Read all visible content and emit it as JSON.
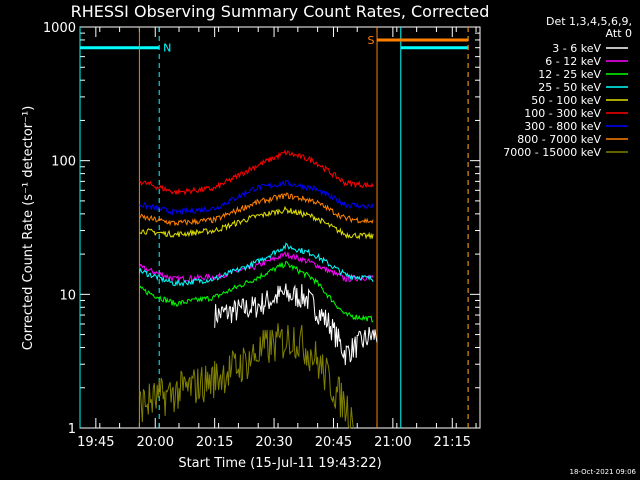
{
  "chart_data": {
    "type": "line",
    "title": "RHESSI Observing Summary Count Rates, Corrected",
    "xlabel": "Start Time (15-Jul-11 19:43:22)",
    "ylabel": "Corrected Count Rate (s⁻¹ detector⁻¹)",
    "y_scale": "log",
    "ylim": [
      1,
      1000
    ],
    "xlim": [
      "19:41",
      "21:22"
    ],
    "y_ticks": [
      "1",
      "10",
      "100",
      "1000"
    ],
    "x_ticks": [
      "19:45",
      "20:00",
      "20:15",
      "20:30",
      "20:45",
      "21:00",
      "21:15"
    ],
    "detector_info": [
      "Det 1,3,4,5,6,9,",
      "Att 0"
    ],
    "footer_date": "18-Oct-2021 09:06",
    "data_start": "19:56",
    "data_end": "20:56",
    "series": [
      {
        "name": "3 - 6 keV",
        "color": "#ffffff",
        "points": [
          [
            "19:56",
            null
          ],
          [
            "20:15",
            7
          ],
          [
            "20:25",
            8
          ],
          [
            "20:32",
            10
          ],
          [
            "20:38",
            9.5
          ],
          [
            "20:44",
            6
          ],
          [
            "20:48",
            3.6
          ],
          [
            "20:54",
            4.8
          ],
          [
            "20:56",
            5
          ]
        ]
      },
      {
        "name": "6 - 12 keV",
        "color": "#ff00ff",
        "points": [
          [
            "19:56",
            16
          ],
          [
            "20:05",
            13
          ],
          [
            "20:15",
            13.5
          ],
          [
            "20:25",
            16
          ],
          [
            "20:33",
            20
          ],
          [
            "20:40",
            17
          ],
          [
            "20:48",
            13
          ],
          [
            "20:55",
            13.5
          ]
        ]
      },
      {
        "name": "12 - 25 keV",
        "color": "#00ff00",
        "points": [
          [
            "19:56",
            11
          ],
          [
            "20:05",
            8.5
          ],
          [
            "20:15",
            9.5
          ],
          [
            "20:25",
            13
          ],
          [
            "20:33",
            17
          ],
          [
            "20:40",
            13
          ],
          [
            "20:48",
            7
          ],
          [
            "20:55",
            6.5
          ]
        ]
      },
      {
        "name": "25 - 50 keV",
        "color": "#00ffff",
        "points": [
          [
            "19:56",
            15
          ],
          [
            "20:05",
            12
          ],
          [
            "20:15",
            13
          ],
          [
            "20:25",
            17
          ],
          [
            "20:33",
            23
          ],
          [
            "20:40",
            20
          ],
          [
            "20:48",
            14
          ],
          [
            "20:55",
            13
          ]
        ]
      },
      {
        "name": "50 - 100 keV",
        "color": "#e0e000",
        "points": [
          [
            "19:56",
            30
          ],
          [
            "20:05",
            28
          ],
          [
            "20:15",
            30
          ],
          [
            "20:25",
            38
          ],
          [
            "20:33",
            43
          ],
          [
            "20:40",
            38
          ],
          [
            "20:48",
            28
          ],
          [
            "20:55",
            27
          ]
        ]
      },
      {
        "name": "100 - 300 keV",
        "color": "#ff0000",
        "points": [
          [
            "19:56",
            70
          ],
          [
            "20:05",
            58
          ],
          [
            "20:15",
            62
          ],
          [
            "20:25",
            90
          ],
          [
            "20:33",
            115
          ],
          [
            "20:40",
            100
          ],
          [
            "20:48",
            68
          ],
          [
            "20:55",
            65
          ]
        ]
      },
      {
        "name": "300 - 800 keV",
        "color": "#0000ff",
        "points": [
          [
            "19:56",
            47
          ],
          [
            "20:05",
            41
          ],
          [
            "20:15",
            44
          ],
          [
            "20:25",
            62
          ],
          [
            "20:33",
            68
          ],
          [
            "20:40",
            62
          ],
          [
            "20:48",
            47
          ],
          [
            "20:55",
            45
          ]
        ]
      },
      {
        "name": "800 - 7000 keV",
        "color": "#ff8000",
        "points": [
          [
            "19:56",
            38
          ],
          [
            "20:05",
            34
          ],
          [
            "20:15",
            36
          ],
          [
            "20:25",
            48
          ],
          [
            "20:33",
            55
          ],
          [
            "20:40",
            50
          ],
          [
            "20:48",
            37
          ],
          [
            "20:55",
            35
          ]
        ]
      },
      {
        "name": "7000 - 15000 keV",
        "color": "#808000",
        "points": [
          [
            "19:56",
            1.5
          ],
          [
            "20:13",
            2.2
          ],
          [
            "20:22",
            3
          ],
          [
            "20:28",
            4
          ],
          [
            "20:35",
            4.8
          ],
          [
            "20:40",
            3.5
          ],
          [
            "20:45",
            2
          ],
          [
            "20:50",
            1.2
          ]
        ]
      }
    ],
    "annotations": [
      {
        "label": "N",
        "color": "#00ffff",
        "type": "night",
        "start": "19:41",
        "end": "20:01",
        "level": 700
      },
      {
        "label": "",
        "color": "#00ffff",
        "type": "night",
        "start": "21:02",
        "end": "21:19",
        "level": 700
      },
      {
        "label": "S",
        "color": "#ff8000",
        "type": "saa",
        "start": "20:56",
        "end": "21:19",
        "level": 800
      }
    ]
  }
}
